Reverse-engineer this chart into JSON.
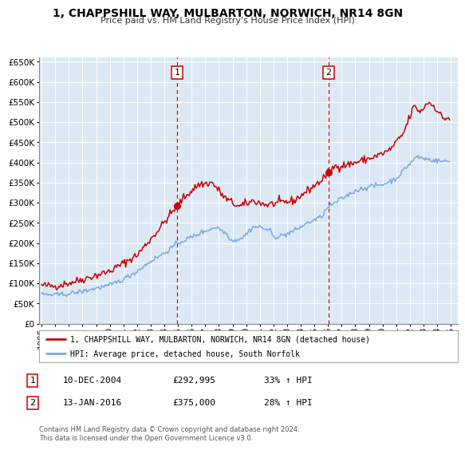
{
  "title": "1, CHAPPSHILL WAY, MULBARTON, NORWICH, NR14 8GN",
  "subtitle": "Price paid vs. HM Land Registry's House Price Index (HPI)",
  "fig_bg_color": "#ffffff",
  "plot_bg_color": "#dce9f5",
  "red_line_color": "#cc0000",
  "blue_line_color": "#7aaadd",
  "ylim": [
    0,
    660000
  ],
  "yticks": [
    0,
    50000,
    100000,
    150000,
    200000,
    250000,
    300000,
    350000,
    400000,
    450000,
    500000,
    550000,
    600000,
    650000
  ],
  "xlim_start": 1994.8,
  "xlim_end": 2025.5,
  "xtick_years": [
    1995,
    1996,
    1997,
    1998,
    1999,
    2000,
    2001,
    2002,
    2003,
    2004,
    2005,
    2006,
    2007,
    2008,
    2009,
    2010,
    2011,
    2012,
    2013,
    2014,
    2015,
    2016,
    2017,
    2018,
    2019,
    2020,
    2021,
    2022,
    2023,
    2024,
    2025
  ],
  "legend_label_red": "1, CHAPPSHILL WAY, MULBARTON, NORWICH, NR14 8GN (detached house)",
  "legend_label_blue": "HPI: Average price, detached house, South Norfolk",
  "marker1_x": 2004.94,
  "marker1_y": 292995,
  "marker1_label": "1",
  "marker1_date": "10-DEC-2004",
  "marker1_price": "£292,995",
  "marker1_hpi": "33% ↑ HPI",
  "marker2_x": 2016.04,
  "marker2_y": 375000,
  "marker2_label": "2",
  "marker2_date": "13-JAN-2016",
  "marker2_price": "£375,000",
  "marker2_hpi": "28% ↑ HPI",
  "footer_line1": "Contains HM Land Registry data © Crown copyright and database right 2024.",
  "footer_line2": "This data is licensed under the Open Government Licence v3.0.",
  "grid_color": "#ffffff",
  "vline_color": "#cc0000",
  "legend_border_color": "#aaaaaa",
  "ann_box_color": "#cc0000"
}
